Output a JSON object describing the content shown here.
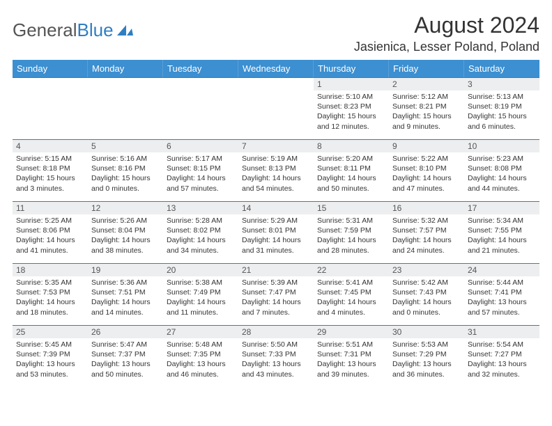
{
  "logo": {
    "textGray": "General",
    "textBlue": "Blue"
  },
  "title": "August 2024",
  "location": "Jasienica, Lesser Poland, Poland",
  "colors": {
    "headerBg": "#3c8fd0",
    "headerText": "#ffffff",
    "dayNumBg": "#eceeef",
    "borderBlue": "#2f7ec2",
    "bodyText": "#333333"
  },
  "weekdays": [
    "Sunday",
    "Monday",
    "Tuesday",
    "Wednesday",
    "Thursday",
    "Friday",
    "Saturday"
  ],
  "weeks": [
    [
      null,
      null,
      null,
      null,
      {
        "num": "1",
        "sunrise": "5:10 AM",
        "sunset": "8:23 PM",
        "daylight": "15 hours and 12 minutes."
      },
      {
        "num": "2",
        "sunrise": "5:12 AM",
        "sunset": "8:21 PM",
        "daylight": "15 hours and 9 minutes."
      },
      {
        "num": "3",
        "sunrise": "5:13 AM",
        "sunset": "8:19 PM",
        "daylight": "15 hours and 6 minutes."
      }
    ],
    [
      {
        "num": "4",
        "sunrise": "5:15 AM",
        "sunset": "8:18 PM",
        "daylight": "15 hours and 3 minutes."
      },
      {
        "num": "5",
        "sunrise": "5:16 AM",
        "sunset": "8:16 PM",
        "daylight": "15 hours and 0 minutes."
      },
      {
        "num": "6",
        "sunrise": "5:17 AM",
        "sunset": "8:15 PM",
        "daylight": "14 hours and 57 minutes."
      },
      {
        "num": "7",
        "sunrise": "5:19 AM",
        "sunset": "8:13 PM",
        "daylight": "14 hours and 54 minutes."
      },
      {
        "num": "8",
        "sunrise": "5:20 AM",
        "sunset": "8:11 PM",
        "daylight": "14 hours and 50 minutes."
      },
      {
        "num": "9",
        "sunrise": "5:22 AM",
        "sunset": "8:10 PM",
        "daylight": "14 hours and 47 minutes."
      },
      {
        "num": "10",
        "sunrise": "5:23 AM",
        "sunset": "8:08 PM",
        "daylight": "14 hours and 44 minutes."
      }
    ],
    [
      {
        "num": "11",
        "sunrise": "5:25 AM",
        "sunset": "8:06 PM",
        "daylight": "14 hours and 41 minutes."
      },
      {
        "num": "12",
        "sunrise": "5:26 AM",
        "sunset": "8:04 PM",
        "daylight": "14 hours and 38 minutes."
      },
      {
        "num": "13",
        "sunrise": "5:28 AM",
        "sunset": "8:02 PM",
        "daylight": "14 hours and 34 minutes."
      },
      {
        "num": "14",
        "sunrise": "5:29 AM",
        "sunset": "8:01 PM",
        "daylight": "14 hours and 31 minutes."
      },
      {
        "num": "15",
        "sunrise": "5:31 AM",
        "sunset": "7:59 PM",
        "daylight": "14 hours and 28 minutes."
      },
      {
        "num": "16",
        "sunrise": "5:32 AM",
        "sunset": "7:57 PM",
        "daylight": "14 hours and 24 minutes."
      },
      {
        "num": "17",
        "sunrise": "5:34 AM",
        "sunset": "7:55 PM",
        "daylight": "14 hours and 21 minutes."
      }
    ],
    [
      {
        "num": "18",
        "sunrise": "5:35 AM",
        "sunset": "7:53 PM",
        "daylight": "14 hours and 18 minutes."
      },
      {
        "num": "19",
        "sunrise": "5:36 AM",
        "sunset": "7:51 PM",
        "daylight": "14 hours and 14 minutes."
      },
      {
        "num": "20",
        "sunrise": "5:38 AM",
        "sunset": "7:49 PM",
        "daylight": "14 hours and 11 minutes."
      },
      {
        "num": "21",
        "sunrise": "5:39 AM",
        "sunset": "7:47 PM",
        "daylight": "14 hours and 7 minutes."
      },
      {
        "num": "22",
        "sunrise": "5:41 AM",
        "sunset": "7:45 PM",
        "daylight": "14 hours and 4 minutes."
      },
      {
        "num": "23",
        "sunrise": "5:42 AM",
        "sunset": "7:43 PM",
        "daylight": "14 hours and 0 minutes."
      },
      {
        "num": "24",
        "sunrise": "5:44 AM",
        "sunset": "7:41 PM",
        "daylight": "13 hours and 57 minutes."
      }
    ],
    [
      {
        "num": "25",
        "sunrise": "5:45 AM",
        "sunset": "7:39 PM",
        "daylight": "13 hours and 53 minutes."
      },
      {
        "num": "26",
        "sunrise": "5:47 AM",
        "sunset": "7:37 PM",
        "daylight": "13 hours and 50 minutes."
      },
      {
        "num": "27",
        "sunrise": "5:48 AM",
        "sunset": "7:35 PM",
        "daylight": "13 hours and 46 minutes."
      },
      {
        "num": "28",
        "sunrise": "5:50 AM",
        "sunset": "7:33 PM",
        "daylight": "13 hours and 43 minutes."
      },
      {
        "num": "29",
        "sunrise": "5:51 AM",
        "sunset": "7:31 PM",
        "daylight": "13 hours and 39 minutes."
      },
      {
        "num": "30",
        "sunrise": "5:53 AM",
        "sunset": "7:29 PM",
        "daylight": "13 hours and 36 minutes."
      },
      {
        "num": "31",
        "sunrise": "5:54 AM",
        "sunset": "7:27 PM",
        "daylight": "13 hours and 32 minutes."
      }
    ]
  ],
  "labels": {
    "sunrise": "Sunrise: ",
    "sunset": "Sunset: ",
    "daylight": "Daylight: "
  }
}
